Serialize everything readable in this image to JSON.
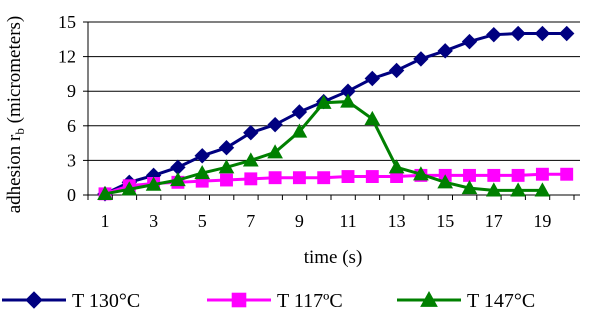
{
  "chart_data": {
    "type": "line",
    "title": "",
    "xlabel": "time (s)",
    "ylabel_main": "adhesion r",
    "ylabel_sub": "b",
    "ylabel_suffix": " (micrometers)",
    "x": [
      1,
      2,
      3,
      4,
      5,
      6,
      7,
      8,
      9,
      10,
      11,
      12,
      13,
      14,
      15,
      16,
      17,
      18,
      19,
      20
    ],
    "xlim": [
      1,
      20
    ],
    "x_tick_labels": [
      "1",
      "3",
      "5",
      "7",
      "9",
      "11",
      "13",
      "15",
      "17",
      "19"
    ],
    "x_tick_values": [
      1,
      3,
      5,
      7,
      9,
      11,
      13,
      15,
      17,
      19
    ],
    "ylim": [
      0,
      15
    ],
    "y_ticks": [
      0,
      3,
      6,
      9,
      12,
      15
    ],
    "y_tick_labels": [
      "0",
      "3",
      "6",
      "9",
      "12",
      "15"
    ],
    "grid": "horizontal",
    "legend_position": "bottom",
    "series": [
      {
        "name": "T 130°C",
        "color": "#000080",
        "marker": "diamond",
        "values": [
          0.1,
          1.1,
          1.7,
          2.4,
          3.4,
          4.1,
          5.4,
          6.1,
          7.2,
          8.1,
          9.0,
          10.1,
          10.8,
          11.8,
          12.5,
          13.3,
          13.9,
          14.0,
          14.0,
          14.0
        ]
      },
      {
        "name": "T 117ºC",
        "color": "#FF00FF",
        "marker": "square",
        "values": [
          0.1,
          0.8,
          1.0,
          1.1,
          1.2,
          1.3,
          1.4,
          1.5,
          1.5,
          1.5,
          1.6,
          1.6,
          1.6,
          1.7,
          1.7,
          1.7,
          1.7,
          1.7,
          1.8,
          1.8
        ]
      },
      {
        "name": "T 147°C",
        "color": "#008000",
        "marker": "triangle",
        "values": [
          0.1,
          0.5,
          0.9,
          1.3,
          1.9,
          2.4,
          3.0,
          3.7,
          5.5,
          8.0,
          8.1,
          6.6,
          2.4,
          1.8,
          1.1,
          0.6,
          0.4,
          0.4,
          0.4,
          null
        ]
      }
    ]
  }
}
